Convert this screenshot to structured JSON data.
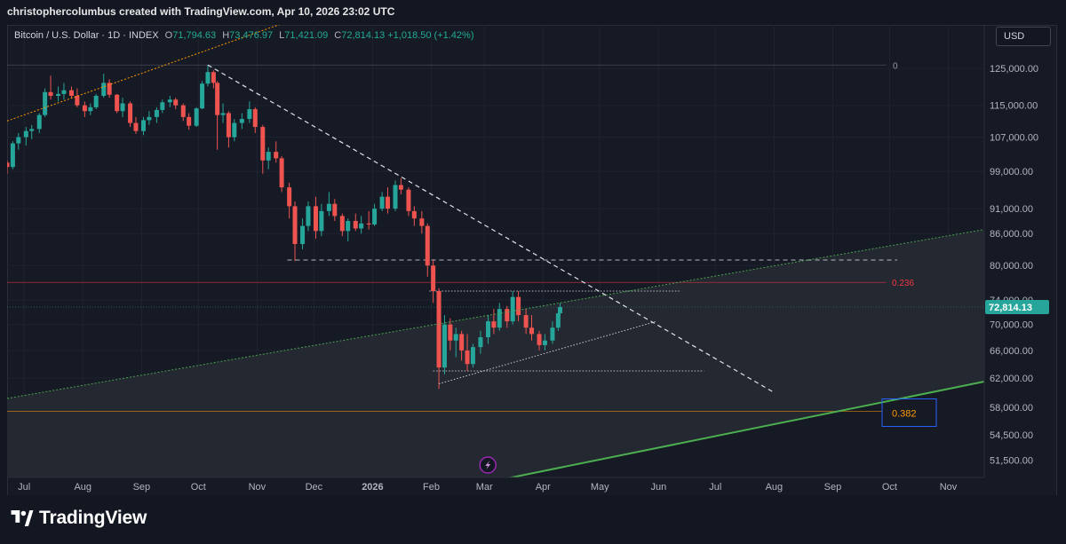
{
  "header": {
    "caption": "christophercolumbus created with TradingView.com, Apr 10, 2026 23:02 UTC"
  },
  "legend": {
    "symbol": "Bitcoin / U.S. Dollar · 1D · INDEX",
    "open_label": "O",
    "open": "71,794.63",
    "high_label": "H",
    "high": "73,476.97",
    "low_label": "L",
    "low": "71,421.09",
    "close_label": "C",
    "close": "72,814.13",
    "change": "+1,018.50 (+1.42%)"
  },
  "currency_button": "USD",
  "brand": {
    "name": "TradingView",
    "logo_icon": "tradingview-logo-icon"
  },
  "colors": {
    "up": "#26a69a",
    "down": "#ef5350",
    "accent_green": "#4caf50",
    "fib_orange": "#ff9800",
    "fib_red": "#f23645"
  },
  "chart_data": {
    "type": "candlestick",
    "title": "Bitcoin / U.S. Dollar · 1D · INDEX",
    "x_tick_labels": [
      "Jul",
      "Aug",
      "Sep",
      "Oct",
      "Nov",
      "Dec",
      "2026",
      "Feb",
      "Mar",
      "Apr",
      "May",
      "Jun",
      "Jul",
      "Aug",
      "Sep",
      "Oct",
      "Nov"
    ],
    "x_range": [
      "2025-06-22",
      "2026-11-20"
    ],
    "y_tick_labels": [
      "125,000.00",
      "115,000.00",
      "107,000.00",
      "99,000.00",
      "91,000.00",
      "86,000.00",
      "80,000.00",
      "74,000.00",
      "70,000.00",
      "66,000.00",
      "62,000.00",
      "58,000.00",
      "54,500.00",
      "51,500.00"
    ],
    "y_scale": "log",
    "y_range": [
      49500,
      138000
    ],
    "last_price": "72,814.13",
    "fib_labels": [
      {
        "text": "0",
        "price": 126000
      },
      {
        "text": "0.236",
        "price": 77000
      },
      {
        "text": "0.382",
        "price": 57500
      }
    ],
    "horizontal_levels": [
      {
        "price": 81000,
        "style": "dashed",
        "from": "2025-11-17",
        "to": "2026-10-05"
      },
      {
        "price": 75500,
        "style": "dotted",
        "from": "2026-01-31",
        "to": "2026-06-12"
      },
      {
        "price": 63000,
        "style": "dotted",
        "from": "2026-02-02",
        "to": "2026-06-25"
      }
    ],
    "trendlines": [
      {
        "name": "descending",
        "style": "dashed",
        "points": [
          [
            "2025-10-06",
            126000
          ],
          [
            "2026-08-01",
            60000
          ]
        ]
      },
      {
        "name": "rising support",
        "style": "dotted",
        "points": [
          [
            "2026-02-05",
            61200
          ],
          [
            "2026-05-31",
            70500
          ]
        ]
      },
      {
        "name": "upper channel",
        "style": "orange-dotted",
        "points": [
          [
            "2025-06-22",
            111000
          ],
          [
            "2026-03-10",
            165000
          ]
        ]
      },
      {
        "name": "lower channel",
        "style": "green",
        "points": [
          [
            "2025-06-22",
            59200
          ],
          [
            "2026-11-20",
            86800
          ]
        ]
      },
      {
        "name": "long-term support",
        "style": "green-solid",
        "points": [
          [
            "2026-02-20",
            48500
          ],
          [
            "2026-11-20",
            61500
          ]
        ]
      }
    ],
    "ohlc": [
      [
        "2025-06-22",
        101000,
        101500,
        98500,
        100000
      ],
      [
        "2025-06-25",
        100000,
        106000,
        99500,
        105500
      ],
      [
        "2025-06-28",
        105500,
        108000,
        104000,
        107000
      ],
      [
        "2025-07-02",
        107000,
        109500,
        105000,
        108500
      ],
      [
        "2025-07-05",
        108500,
        110000,
        106500,
        109000
      ],
      [
        "2025-07-09",
        109000,
        113000,
        108000,
        112500
      ],
      [
        "2025-07-12",
        112500,
        119500,
        112000,
        118500
      ],
      [
        "2025-07-15",
        118500,
        123000,
        116500,
        117500
      ],
      [
        "2025-07-19",
        117500,
        120000,
        116000,
        118000
      ],
      [
        "2025-07-22",
        118000,
        121000,
        116500,
        119000
      ],
      [
        "2025-07-26",
        119000,
        120000,
        117000,
        117500
      ],
      [
        "2025-07-29",
        117500,
        119500,
        114500,
        115000
      ],
      [
        "2025-08-02",
        115000,
        116000,
        112000,
        113500
      ],
      [
        "2025-08-05",
        113500,
        115500,
        112500,
        114500
      ],
      [
        "2025-08-08",
        114500,
        118000,
        114000,
        117500
      ],
      [
        "2025-08-12",
        117500,
        123500,
        117000,
        121000
      ],
      [
        "2025-08-15",
        121000,
        122000,
        117000,
        117800
      ],
      [
        "2025-08-19",
        117800,
        118000,
        113000,
        113500
      ],
      [
        "2025-08-22",
        113500,
        117000,
        112000,
        115500
      ],
      [
        "2025-08-26",
        115500,
        116000,
        109500,
        110500
      ],
      [
        "2025-08-29",
        110500,
        112000,
        107800,
        108500
      ],
      [
        "2025-09-02",
        108500,
        112000,
        107500,
        111200
      ],
      [
        "2025-09-05",
        111200,
        113500,
        110000,
        112000
      ],
      [
        "2025-09-09",
        112000,
        114500,
        110500,
        113800
      ],
      [
        "2025-09-12",
        113800,
        116500,
        113000,
        115800
      ],
      [
        "2025-09-16",
        115800,
        117500,
        114500,
        116500
      ],
      [
        "2025-09-19",
        116500,
        117000,
        114000,
        115000
      ],
      [
        "2025-09-23",
        115000,
        115500,
        111000,
        112000
      ],
      [
        "2025-09-26",
        112000,
        113000,
        108800,
        109800
      ],
      [
        "2025-09-30",
        109800,
        114500,
        109500,
        114200
      ],
      [
        "2025-10-03",
        114200,
        121500,
        114000,
        120800
      ],
      [
        "2025-10-06",
        120800,
        126000,
        120000,
        124000
      ],
      [
        "2025-10-09",
        124000,
        124500,
        119500,
        121000
      ],
      [
        "2025-10-11",
        121000,
        121500,
        104000,
        112500
      ],
      [
        "2025-10-14",
        112500,
        115500,
        110500,
        113000
      ],
      [
        "2025-10-17",
        113000,
        113500,
        104500,
        107000
      ],
      [
        "2025-10-20",
        107000,
        111500,
        106000,
        110500
      ],
      [
        "2025-10-24",
        110500,
        113000,
        109000,
        111500
      ],
      [
        "2025-10-28",
        111500,
        116000,
        110500,
        114000
      ],
      [
        "2025-10-31",
        114000,
        114500,
        108000,
        109500
      ],
      [
        "2025-11-04",
        109500,
        110000,
        98500,
        101500
      ],
      [
        "2025-11-07",
        101500,
        104500,
        99500,
        103500
      ],
      [
        "2025-11-11",
        103500,
        106000,
        101000,
        102000
      ],
      [
        "2025-11-14",
        102000,
        102500,
        94500,
        95500
      ],
      [
        "2025-11-18",
        95500,
        96500,
        89000,
        91500
      ],
      [
        "2025-11-21",
        91500,
        92500,
        80800,
        84000
      ],
      [
        "2025-11-25",
        84000,
        89000,
        83000,
        87500
      ],
      [
        "2025-11-28",
        87500,
        92500,
        86500,
        91500
      ],
      [
        "2025-12-02",
        91500,
        93500,
        85000,
        86500
      ],
      [
        "2025-12-05",
        86500,
        92000,
        85500,
        90500
      ],
      [
        "2025-12-09",
        90500,
        94500,
        89500,
        92000
      ],
      [
        "2025-12-12",
        92000,
        93000,
        88500,
        89500
      ],
      [
        "2025-12-16",
        89500,
        90000,
        85500,
        86500
      ],
      [
        "2025-12-19",
        86500,
        89000,
        84500,
        88500
      ],
      [
        "2025-12-23",
        88500,
        90000,
        86500,
        87000
      ],
      [
        "2025-12-26",
        87000,
        89500,
        86000,
        88000
      ],
      [
        "2025-12-30",
        88000,
        90500,
        86800,
        87800
      ],
      [
        "2026-01-02",
        87800,
        92000,
        87500,
        91000
      ],
      [
        "2026-01-06",
        91000,
        94500,
        90500,
        93500
      ],
      [
        "2026-01-09",
        93500,
        95500,
        90000,
        91000
      ],
      [
        "2026-01-13",
        91000,
        97000,
        90500,
        96000
      ],
      [
        "2026-01-16",
        96000,
        97500,
        94000,
        95000
      ],
      [
        "2026-01-20",
        95000,
        95500,
        89500,
        90500
      ],
      [
        "2026-01-23",
        90500,
        91500,
        87500,
        89000
      ],
      [
        "2026-01-27",
        89000,
        90500,
        86000,
        87500
      ],
      [
        "2026-01-30",
        87500,
        88000,
        78000,
        80000
      ],
      [
        "2026-02-02",
        80000,
        81000,
        73500,
        75500
      ],
      [
        "2026-02-05",
        75500,
        76000,
        60500,
        63500
      ],
      [
        "2026-02-08",
        63500,
        71500,
        62500,
        70000
      ],
      [
        "2026-02-11",
        70000,
        71000,
        66000,
        67500
      ],
      [
        "2026-02-14",
        67500,
        69500,
        65000,
        68500
      ],
      [
        "2026-02-17",
        68500,
        69000,
        64500,
        66000
      ],
      [
        "2026-02-20",
        66000,
        68500,
        63000,
        64000
      ],
      [
        "2026-02-23",
        64000,
        67000,
        63500,
        66500
      ],
      [
        "2026-02-27",
        66500,
        69000,
        65500,
        68000
      ],
      [
        "2026-03-03",
        68000,
        71500,
        67000,
        70500
      ],
      [
        "2026-03-06",
        70500,
        72500,
        68500,
        69500
      ],
      [
        "2026-03-09",
        69500,
        73500,
        69000,
        72500
      ],
      [
        "2026-03-13",
        72500,
        73000,
        69500,
        70500
      ],
      [
        "2026-03-16",
        70500,
        75500,
        70000,
        74500
      ],
      [
        "2026-03-19",
        74500,
        75500,
        70500,
        71500
      ],
      [
        "2026-03-23",
        71500,
        72500,
        68500,
        69500
      ],
      [
        "2026-03-26",
        69500,
        71500,
        67500,
        68500
      ],
      [
        "2026-03-30",
        68500,
        69000,
        66000,
        66800
      ],
      [
        "2026-04-02",
        66800,
        68500,
        66000,
        67500
      ],
      [
        "2026-04-06",
        67500,
        70500,
        67000,
        69500
      ],
      [
        "2026-04-09",
        69500,
        71800,
        69000,
        71794.63
      ],
      [
        "2026-04-10",
        71794.63,
        73476.97,
        71421.09,
        72814.13
      ]
    ]
  }
}
